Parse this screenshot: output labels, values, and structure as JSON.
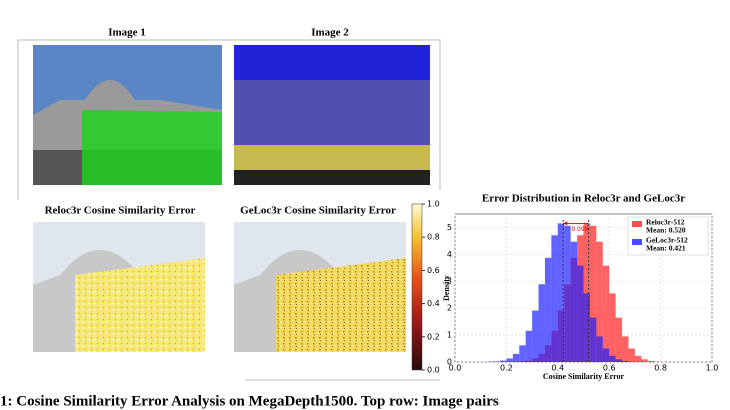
{
  "figure": {
    "image1_title": "Image 1",
    "image2_title": "Image 2",
    "error1_title": "Reloc3r Cosine Similarity Error",
    "error2_title": "GeLoc3r Cosine Similarity Error",
    "colorbar_ticks": [
      {
        "value": 0.0,
        "label": "0.0"
      },
      0.2,
      0.4,
      0.6,
      0.8,
      {
        "value": 1.0,
        "label": "1.0"
      }
    ],
    "caption": "1: Cosine Similarity Error Analysis on MegaDepth1500. Top row: Image pairs"
  },
  "chart_data": {
    "type": "histogram",
    "title": "Error Distribution in Reloc3r and GeLoc3r",
    "xlabel": "Cosine Similarity Error",
    "ylabel": "Density",
    "bins": [
      0.1,
      0.125,
      0.15,
      0.175,
      0.2,
      0.225,
      0.25,
      0.275,
      0.3,
      0.325,
      0.35,
      0.375,
      0.4,
      0.425,
      0.45,
      0.475,
      0.5,
      0.525,
      0.55,
      0.575,
      0.6,
      0.625,
      0.65,
      0.675,
      0.7,
      0.725,
      0.75,
      0.775,
      0.8,
      0.825,
      0.85
    ],
    "series": [
      {
        "name": "Reloc3r-512",
        "color": "#ff2020",
        "mean": 0.52,
        "mean_label": "Mean: 0.520",
        "values": [
          0,
          0,
          0,
          0,
          0,
          0.01,
          0.02,
          0.05,
          0.13,
          0.3,
          0.62,
          1.16,
          1.91,
          2.89,
          3.87,
          4.71,
          5.15,
          5.06,
          4.47,
          3.58,
          2.55,
          1.65,
          0.95,
          0.5,
          0.23,
          0.1,
          0.04,
          0.01,
          0,
          0
        ]
      },
      {
        "name": "GeLoc3r-512",
        "color": "#2020ff",
        "mean": 0.421,
        "mean_label": "Mean: 0.421",
        "values": [
          0,
          0.01,
          0.02,
          0.05,
          0.13,
          0.3,
          0.62,
          1.16,
          1.91,
          2.89,
          3.87,
          4.71,
          5.15,
          5.06,
          4.47,
          3.58,
          2.55,
          1.65,
          0.95,
          0.5,
          0.23,
          0.1,
          0.04,
          0.01,
          0,
          0,
          0,
          0,
          0,
          0
        ]
      }
    ],
    "annotation": 0.099,
    "xlim": [
      0,
      1
    ],
    "xticks": [
      {
        "value": 0,
        "label": "0.0"
      },
      0.2,
      0.4,
      0.6,
      0.8,
      {
        "value": 1,
        "label": "1.0"
      }
    ],
    "ylim": [
      0,
      5.5
    ],
    "yticks": [
      0,
      1,
      2,
      3,
      4,
      5
    ],
    "grid": true,
    "legend": "upper right"
  }
}
